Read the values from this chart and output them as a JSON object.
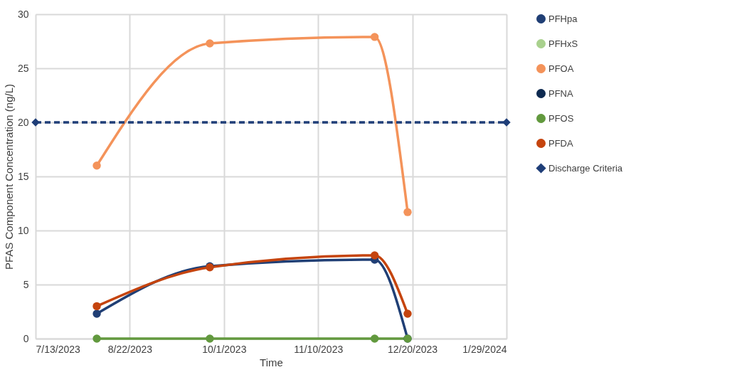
{
  "chart_data": {
    "type": "line",
    "xlabel": "Time",
    "ylabel": "PFAS Component Concentration (ng/L)",
    "x": [
      "2023-08-08",
      "2023-09-25",
      "2023-12-04",
      "2023-12-18"
    ],
    "series": [
      {
        "name": "PFHpa",
        "color": "#203f75",
        "values": [
          2.3,
          6.7,
          7.3,
          0
        ]
      },
      {
        "name": "PFHxS",
        "color": "#a9d18e",
        "values": [
          null,
          null,
          null,
          null
        ]
      },
      {
        "name": "PFOA",
        "color": "#f4935a",
        "values": [
          16.0,
          27.3,
          27.9,
          11.7
        ]
      },
      {
        "name": "PFNA",
        "color": "#0e2a50",
        "values": [
          null,
          null,
          null,
          null
        ]
      },
      {
        "name": "PFOS",
        "color": "#62993e",
        "values": [
          0,
          0,
          0,
          0
        ]
      },
      {
        "name": "PFDA",
        "color": "#c5440e",
        "values": [
          3.0,
          6.6,
          7.7,
          2.3
        ]
      },
      {
        "name": "Discharge Criteria",
        "color": "#1f3e78",
        "x": [
          "2023-07-13",
          "2024-01-29"
        ],
        "values": [
          20,
          20
        ],
        "line_style": "dashed",
        "marker": "diamond"
      }
    ],
    "xlim": [
      "2023-07-13",
      "2024-01-29"
    ],
    "xticks": [
      {
        "value": "2023-07-13",
        "label": "7/13/2023"
      },
      {
        "value": "2023-08-22",
        "label": "8/22/2023"
      },
      {
        "value": "2023-10-01",
        "label": "10/1/2023"
      },
      {
        "value": "2023-11-10",
        "label": "11/10/2023"
      },
      {
        "value": "2023-12-20",
        "label": "12/20/2023"
      },
      {
        "value": "2024-01-29",
        "label": "1/29/2024"
      }
    ],
    "ylim": [
      0,
      30
    ],
    "yticks": [
      0,
      5,
      10,
      15,
      20,
      25,
      30
    ],
    "grid": true,
    "legend": "right",
    "marker": "circle",
    "line_style": "solid"
  }
}
